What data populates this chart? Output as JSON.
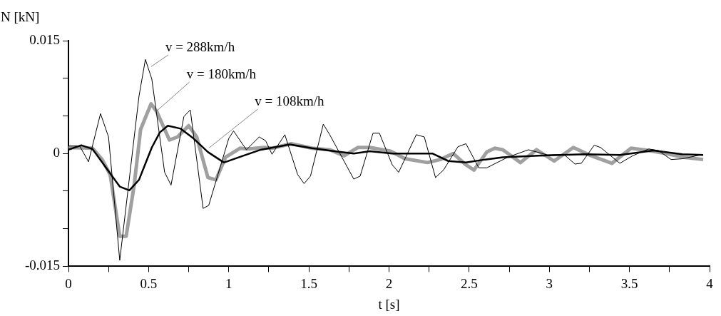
{
  "chart_data": {
    "type": "line",
    "xlabel": "t [s]",
    "ylabel": "N [kN]",
    "xlim": [
      0,
      4
    ],
    "ylim": [
      -0.015,
      0.015
    ],
    "xticks": [
      0,
      {
        "value": 0.25,
        "label": null
      },
      0.5,
      {
        "value": 0.75,
        "label": null
      },
      1,
      {
        "value": 1.25,
        "label": null
      },
      1.5,
      {
        "value": 1.75,
        "label": null
      },
      2,
      {
        "value": 2.25,
        "label": null
      },
      2.5,
      {
        "value": 2.75,
        "label": null
      },
      3,
      {
        "value": 3.25,
        "label": null
      },
      3.5,
      {
        "value": 3.75,
        "label": null
      },
      4
    ],
    "yticks": [
      -0.015,
      {
        "value": -0.01,
        "label": null
      },
      {
        "value": -0.005,
        "label": null
      },
      0,
      {
        "value": 0.005,
        "label": null
      },
      {
        "value": 0.01,
        "label": null
      },
      0.015
    ],
    "grid": false,
    "legend": false,
    "marker": "none",
    "line_style": "solid",
    "series": [
      {
        "name": "v = 288km/h",
        "color": "#000000",
        "x": [
          0,
          0.07,
          0.125,
          0.2,
          0.25,
          0.32,
          0.44,
          0.48,
          0.52,
          0.6,
          0.64,
          0.72,
          0.76,
          0.84,
          0.875,
          1.0,
          1.03,
          1.11,
          1.19,
          1.23,
          1.27,
          1.35,
          1.43,
          1.47,
          1.51,
          1.59,
          1.63,
          1.78,
          1.82,
          1.9,
          1.94,
          2.02,
          2.06,
          2.17,
          2.22,
          2.29,
          2.34,
          2.43,
          2.48,
          2.56,
          2.61,
          2.74,
          2.87,
          2.99,
          3.09,
          3.16,
          3.2,
          3.28,
          3.32,
          3.44,
          3.52,
          3.62,
          3.68,
          3.76,
          3.83,
          3.94
        ],
        "values": [
          0.001,
          0.001,
          -0.0011,
          0.0053,
          0.0022,
          -0.0142,
          0.0076,
          0.0125,
          0.0099,
          -0.0025,
          -0.0042,
          0.0049,
          0.0058,
          -0.0073,
          -0.0069,
          0.002,
          0.003,
          0.0005,
          0.0022,
          0.0017,
          -0.0001,
          0.0025,
          -0.0028,
          -0.004,
          -0.003,
          0.0039,
          0.0025,
          -0.0034,
          -0.003,
          0.0027,
          0.0027,
          -0.0015,
          -0.0025,
          0.0025,
          0.0022,
          -0.0032,
          -0.0022,
          0.0009,
          0.0013,
          -0.0019,
          -0.0019,
          -0.0005,
          0.0005,
          -0.0002,
          -0.0001,
          -0.0014,
          -0.0013,
          0.0011,
          0.0008,
          -0.0013,
          -0.0003,
          0.0006,
          0.0004,
          -0.0008,
          -0.0007,
          -0.0002
        ]
      },
      {
        "name": "v = 180km/h",
        "color": "#a0a0a0",
        "x": [
          0,
          0.15,
          0.21,
          0.26,
          0.32,
          0.36,
          0.41,
          0.45,
          0.515,
          0.55,
          0.63,
          0.68,
          0.75,
          0.8,
          0.87,
          0.92,
          0.98,
          1.07,
          1.12,
          1.22,
          1.27,
          1.39,
          1.52,
          1.63,
          1.72,
          1.805,
          1.88,
          2.01,
          2.1,
          2.24,
          2.32,
          2.4,
          2.48,
          2.53,
          2.61,
          2.66,
          2.71,
          2.82,
          2.92,
          3.03,
          3.15,
          3.25,
          3.39,
          3.51,
          3.62,
          3.73,
          3.84,
          3.96
        ],
        "values": [
          0.0008,
          0.0007,
          -0.0008,
          -0.0028,
          -0.011,
          -0.011,
          -0.0042,
          0.0032,
          0.0066,
          0.0056,
          0.0018,
          0.0022,
          0.0037,
          0.0022,
          -0.0032,
          -0.0035,
          -0.0005,
          0.0007,
          0.0006,
          0.0008,
          0.0007,
          0.0013,
          0.0007,
          0.0005,
          -0.0003,
          0.0008,
          0.0008,
          0.0003,
          -0.0007,
          -0.0012,
          -0.0008,
          0.0,
          -0.0015,
          -0.0022,
          0.0002,
          0.0007,
          0.0005,
          -0.0012,
          0.0005,
          -0.001,
          0.0008,
          -0.0002,
          -0.0013,
          0.0007,
          0.0004,
          0.0,
          -0.0005,
          -0.0008
        ]
      },
      {
        "name": "v = 108km/h",
        "color": "#000000",
        "x": [
          0,
          0.08,
          0.15,
          0.255,
          0.32,
          0.38,
          0.44,
          0.52,
          0.57,
          0.62,
          0.7,
          0.78,
          0.87,
          0.97,
          1.09,
          1.2,
          1.38,
          1.52,
          1.66,
          1.78,
          1.88,
          2.02,
          2.17,
          2.27,
          2.37,
          2.48,
          2.6,
          2.71,
          2.93,
          3.22,
          3.44,
          3.65,
          3.83,
          3.96
        ],
        "values": [
          0.0005,
          0.0011,
          0.0006,
          -0.0025,
          -0.0044,
          -0.0049,
          -0.0035,
          0.0008,
          0.0028,
          0.0037,
          0.0033,
          0.002,
          0.0002,
          -0.0012,
          -0.0003,
          0.0005,
          0.0012,
          0.0007,
          0.0003,
          0.0,
          0.0003,
          0.0,
          0.0,
          0.0,
          -0.001,
          -0.0012,
          -0.0008,
          -0.0005,
          -0.0003,
          -0.0001,
          -0.0002,
          0.0004,
          -0.0001,
          -0.0002
        ]
      }
    ]
  }
}
